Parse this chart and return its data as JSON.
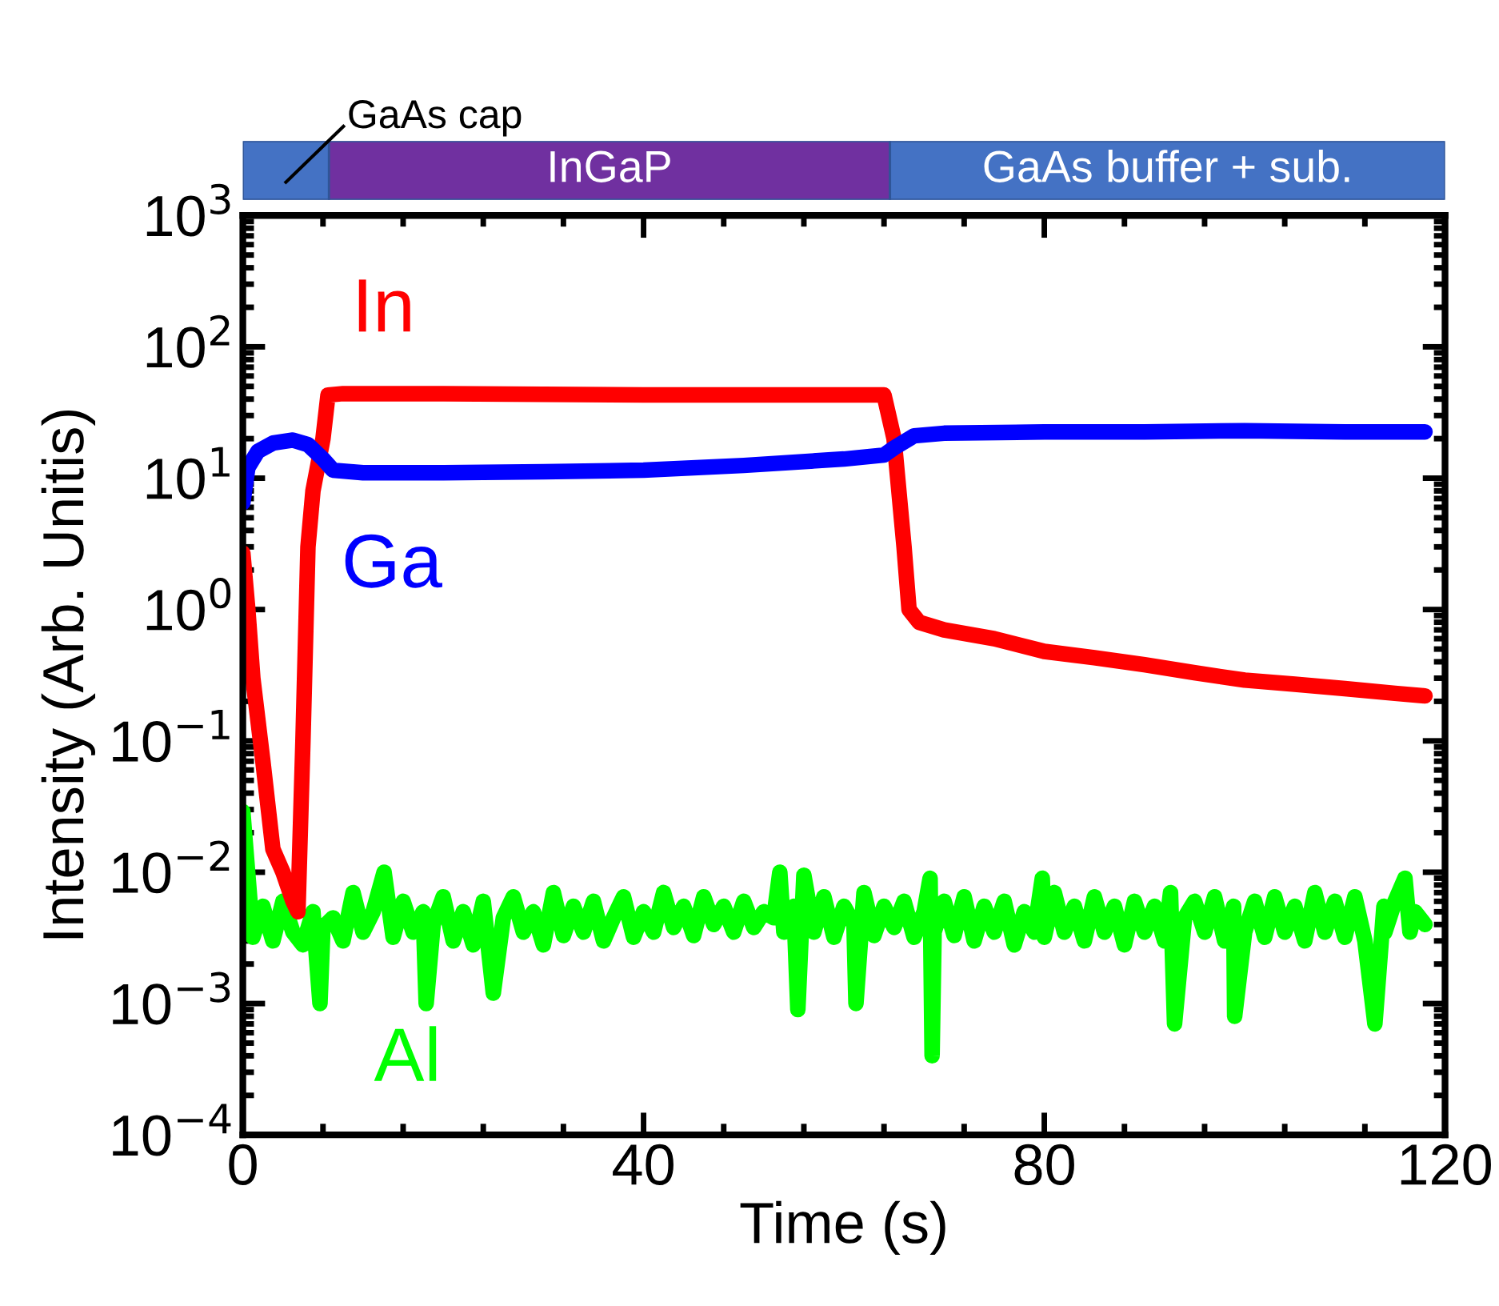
{
  "chart_data": [
    {
      "type": "bar",
      "orientation": "horizontal",
      "stacked": true,
      "categories": [
        null
      ],
      "xlim": [
        0,
        120
      ],
      "tick_labels": false,
      "series": [
        {
          "name": "GaAs cap",
          "color": "#4472c4",
          "values": [
            8.6
          ]
        },
        {
          "name": "InGaP",
          "color": "#7030a0",
          "values": [
            56
          ]
        },
        {
          "name": "GaAs buffer + sub.",
          "color": "#4472c4",
          "values": [
            55.4
          ]
        }
      ]
    },
    {
      "type": "line",
      "xlabel": "Time (s)",
      "ylabel": "Intensity (Arb. Unitis)",
      "log": "y",
      "legend": false,
      "grid": false,
      "marker": "none",
      "line_style": "solid",
      "xlim": [
        0,
        120
      ],
      "xticks": [
        0,
        40,
        80,
        120
      ],
      "ylim": [
        0.0001,
        1000
      ],
      "yticks": [
        {
          "value": 0.0001,
          "label": "10$^{−4}$"
        },
        {
          "value": 0.001,
          "label": "10$^{−3}$"
        },
        {
          "value": 0.01,
          "label": "10$^{−2}$"
        },
        {
          "value": 0.1,
          "label": "10$^{−1}$"
        },
        {
          "value": 1,
          "label": "10$^{0}$"
        },
        {
          "value": 10,
          "label": "10$^{1}$"
        },
        {
          "value": 100,
          "label": "10$^{2}$"
        },
        {
          "value": 1000,
          "label": "10$^{3}$"
        }
      ],
      "series": [
        {
          "name": "Al",
          "color": "#00ff00",
          "x": [
            0,
            1,
            2,
            3,
            4,
            5,
            6,
            7,
            7.7,
            8,
            9,
            10,
            11,
            12,
            13,
            14.1,
            15,
            16,
            17,
            18,
            18.3,
            19,
            20,
            21,
            22,
            23,
            24,
            25,
            26,
            27,
            28,
            29,
            30,
            31,
            32,
            33,
            34,
            35,
            36,
            37,
            38,
            39,
            40,
            41,
            42,
            43,
            44,
            45,
            46,
            47,
            48,
            49,
            50,
            51,
            52,
            53,
            53.6,
            54,
            55,
            55.4,
            56,
            57,
            58,
            59,
            60,
            61,
            61.2,
            62,
            63,
            64,
            65,
            66,
            67,
            68,
            68.6,
            68.8,
            69,
            70,
            71,
            72,
            73,
            74,
            75,
            76,
            77,
            78,
            79,
            79.8,
            80,
            81,
            82,
            83,
            84,
            85,
            86,
            87,
            88,
            89,
            90,
            91,
            92,
            92.6,
            93,
            94,
            95,
            96,
            97,
            98,
            98.9,
            99,
            100,
            101,
            102,
            103,
            104,
            105,
            106,
            107,
            108,
            109,
            110,
            111,
            112,
            113,
            113.9,
            114,
            115,
            116,
            116.5,
            117,
            118
          ],
          "values": [
            0.029,
            0.0032,
            0.0055,
            0.003,
            0.006,
            0.0035,
            0.0028,
            0.005,
            0.001,
            0.0038,
            0.0045,
            0.003,
            0.007,
            0.0035,
            0.005,
            0.01,
            0.0032,
            0.006,
            0.0035,
            0.005,
            0.001,
            0.004,
            0.0065,
            0.003,
            0.005,
            0.0028,
            0.006,
            0.0012,
            0.0045,
            0.0065,
            0.0035,
            0.005,
            0.0028,
            0.007,
            0.0033,
            0.0055,
            0.0035,
            0.006,
            0.003,
            0.0045,
            0.0065,
            0.0032,
            0.005,
            0.0035,
            0.007,
            0.0038,
            0.0055,
            0.0033,
            0.0065,
            0.004,
            0.0055,
            0.0035,
            0.006,
            0.0038,
            0.005,
            0.0045,
            0.01,
            0.0035,
            0.0055,
            0.0009,
            0.0095,
            0.0035,
            0.0065,
            0.0032,
            0.0055,
            0.004,
            0.001,
            0.007,
            0.0033,
            0.0055,
            0.0038,
            0.006,
            0.0032,
            0.005,
            0.009,
            0.0004,
            0.0035,
            0.006,
            0.0033,
            0.0065,
            0.003,
            0.0055,
            0.0035,
            0.006,
            0.0028,
            0.005,
            0.0035,
            0.009,
            0.0032,
            0.007,
            0.0035,
            0.0055,
            0.003,
            0.0065,
            0.0035,
            0.0055,
            0.0028,
            0.006,
            0.0035,
            0.0055,
            0.003,
            0.007,
            0.0007,
            0.0045,
            0.006,
            0.0035,
            0.0065,
            0.003,
            0.0055,
            0.0008,
            0.0035,
            0.006,
            0.0032,
            0.0065,
            0.0035,
            0.0055,
            0.003,
            0.007,
            0.0035,
            0.006,
            0.0032,
            0.0065,
            0.003,
            0.0007,
            0.0055,
            0.0035,
            0.006,
            0.009,
            0.0035,
            0.005,
            0.004
          ]
        },
        {
          "name": "In",
          "color": "#ff0000",
          "x": [
            0,
            0.5,
            1,
            2,
            3,
            4,
            5,
            5.5,
            6,
            6.5,
            7,
            8,
            8.5,
            10,
            20,
            40,
            60,
            64,
            65,
            66,
            66.5,
            67.5,
            70,
            75,
            80,
            85,
            90,
            95,
            100,
            105,
            110,
            115,
            118
          ],
          "values": [
            2.7,
            1,
            0.3,
            0.07,
            0.015,
            0.01,
            0.006,
            0.005,
            0.1,
            3,
            8,
            20,
            43,
            44,
            44,
            43,
            43,
            43,
            20,
            3,
            1,
            0.8,
            0.7,
            0.6,
            0.48,
            0.43,
            0.38,
            0.33,
            0.29,
            0.27,
            0.25,
            0.23,
            0.22
          ]
        },
        {
          "name": "Ga",
          "color": "#0000ff",
          "x": [
            0,
            0.5,
            1.5,
            3,
            5,
            6.5,
            8,
            9,
            12,
            20,
            30,
            40,
            50,
            60,
            64,
            65,
            67,
            70,
            80,
            90,
            100,
            110,
            118
          ],
          "values": [
            6.5,
            12,
            16,
            18.5,
            19.5,
            18,
            14,
            11.5,
            11,
            11,
            11.2,
            11.5,
            12.5,
            14,
            15,
            17,
            21,
            22,
            22.5,
            22.5,
            23,
            22.5,
            22.5
          ]
        }
      ]
    }
  ]
}
